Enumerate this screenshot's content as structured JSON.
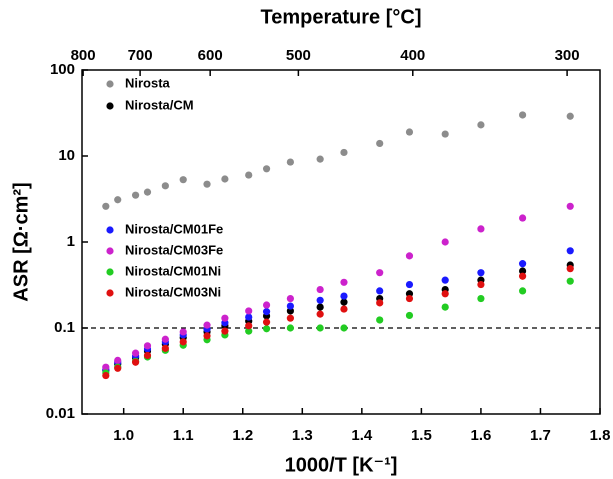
{
  "chart_data": {
    "type": "scatter",
    "xlabel": "1000/T [K⁻¹]",
    "ylabel": "ASR [Ω·cm²]",
    "x2label": "Temperature [°C]",
    "xlim": [
      0.93,
      1.8
    ],
    "xticks": [
      {
        "value": 1,
        "label": "1.0"
      },
      1.1,
      1.2,
      1.3,
      1.4,
      1.5,
      1.6,
      1.7,
      1.8
    ],
    "x2ticks": [
      800,
      700,
      600,
      500,
      400,
      300
    ],
    "ylim": [
      0.01,
      100
    ],
    "yticks": [
      0.01,
      0.1,
      1,
      10,
      100
    ],
    "ylog": true,
    "hline": 0.1,
    "x": [
      0.97,
      0.99,
      1.02,
      1.04,
      1.07,
      1.1,
      1.14,
      1.17,
      1.21,
      1.24,
      1.28,
      1.33,
      1.37,
      1.43,
      1.48,
      1.54,
      1.6,
      1.67,
      1.75
    ],
    "series": [
      {
        "name": "Nirosta",
        "color": "#8c8c8c",
        "values": [
          2.6,
          3.1,
          3.5,
          3.8,
          4.5,
          5.3,
          4.7,
          5.4,
          6.0,
          7.1,
          8.5,
          9.2,
          11,
          14,
          19,
          18,
          23,
          30,
          29
        ]
      },
      {
        "name": "Nirosta/CM",
        "color": "#000000",
        "values": [
          0.032,
          0.038,
          0.045,
          0.054,
          0.065,
          0.077,
          0.09,
          0.106,
          0.12,
          0.138,
          0.158,
          0.175,
          0.2,
          0.22,
          0.25,
          0.28,
          0.36,
          0.46,
          0.54
        ]
      },
      {
        "name": "Nirosta/CM01Fe",
        "color": "#1a1aff",
        "values": [
          0.033,
          0.04,
          0.047,
          0.057,
          0.069,
          0.083,
          0.097,
          0.115,
          0.134,
          0.155,
          0.18,
          0.21,
          0.235,
          0.27,
          0.32,
          0.36,
          0.44,
          0.56,
          0.79
        ]
      },
      {
        "name": "Nirosta/CM03Fe",
        "color": "#cc22cc",
        "values": [
          0.035,
          0.042,
          0.051,
          0.062,
          0.074,
          0.09,
          0.108,
          0.13,
          0.158,
          0.185,
          0.22,
          0.28,
          0.34,
          0.44,
          0.69,
          1.0,
          1.42,
          1.9,
          2.6
        ]
      },
      {
        "name": "Nirosta/CM01Ni",
        "color": "#22cc22",
        "values": [
          0.03,
          0.035,
          0.041,
          0.046,
          0.055,
          0.063,
          0.073,
          0.083,
          0.092,
          0.098,
          0.1,
          0.1,
          0.1,
          0.124,
          0.14,
          0.175,
          0.22,
          0.27,
          0.35
        ]
      },
      {
        "name": "Nirosta/CM03Ni",
        "color": "#e01010",
        "values": [
          0.028,
          0.034,
          0.04,
          0.048,
          0.058,
          0.069,
          0.081,
          0.092,
          0.106,
          0.117,
          0.13,
          0.145,
          0.166,
          0.196,
          0.22,
          0.25,
          0.32,
          0.4,
          0.49
        ]
      }
    ]
  }
}
